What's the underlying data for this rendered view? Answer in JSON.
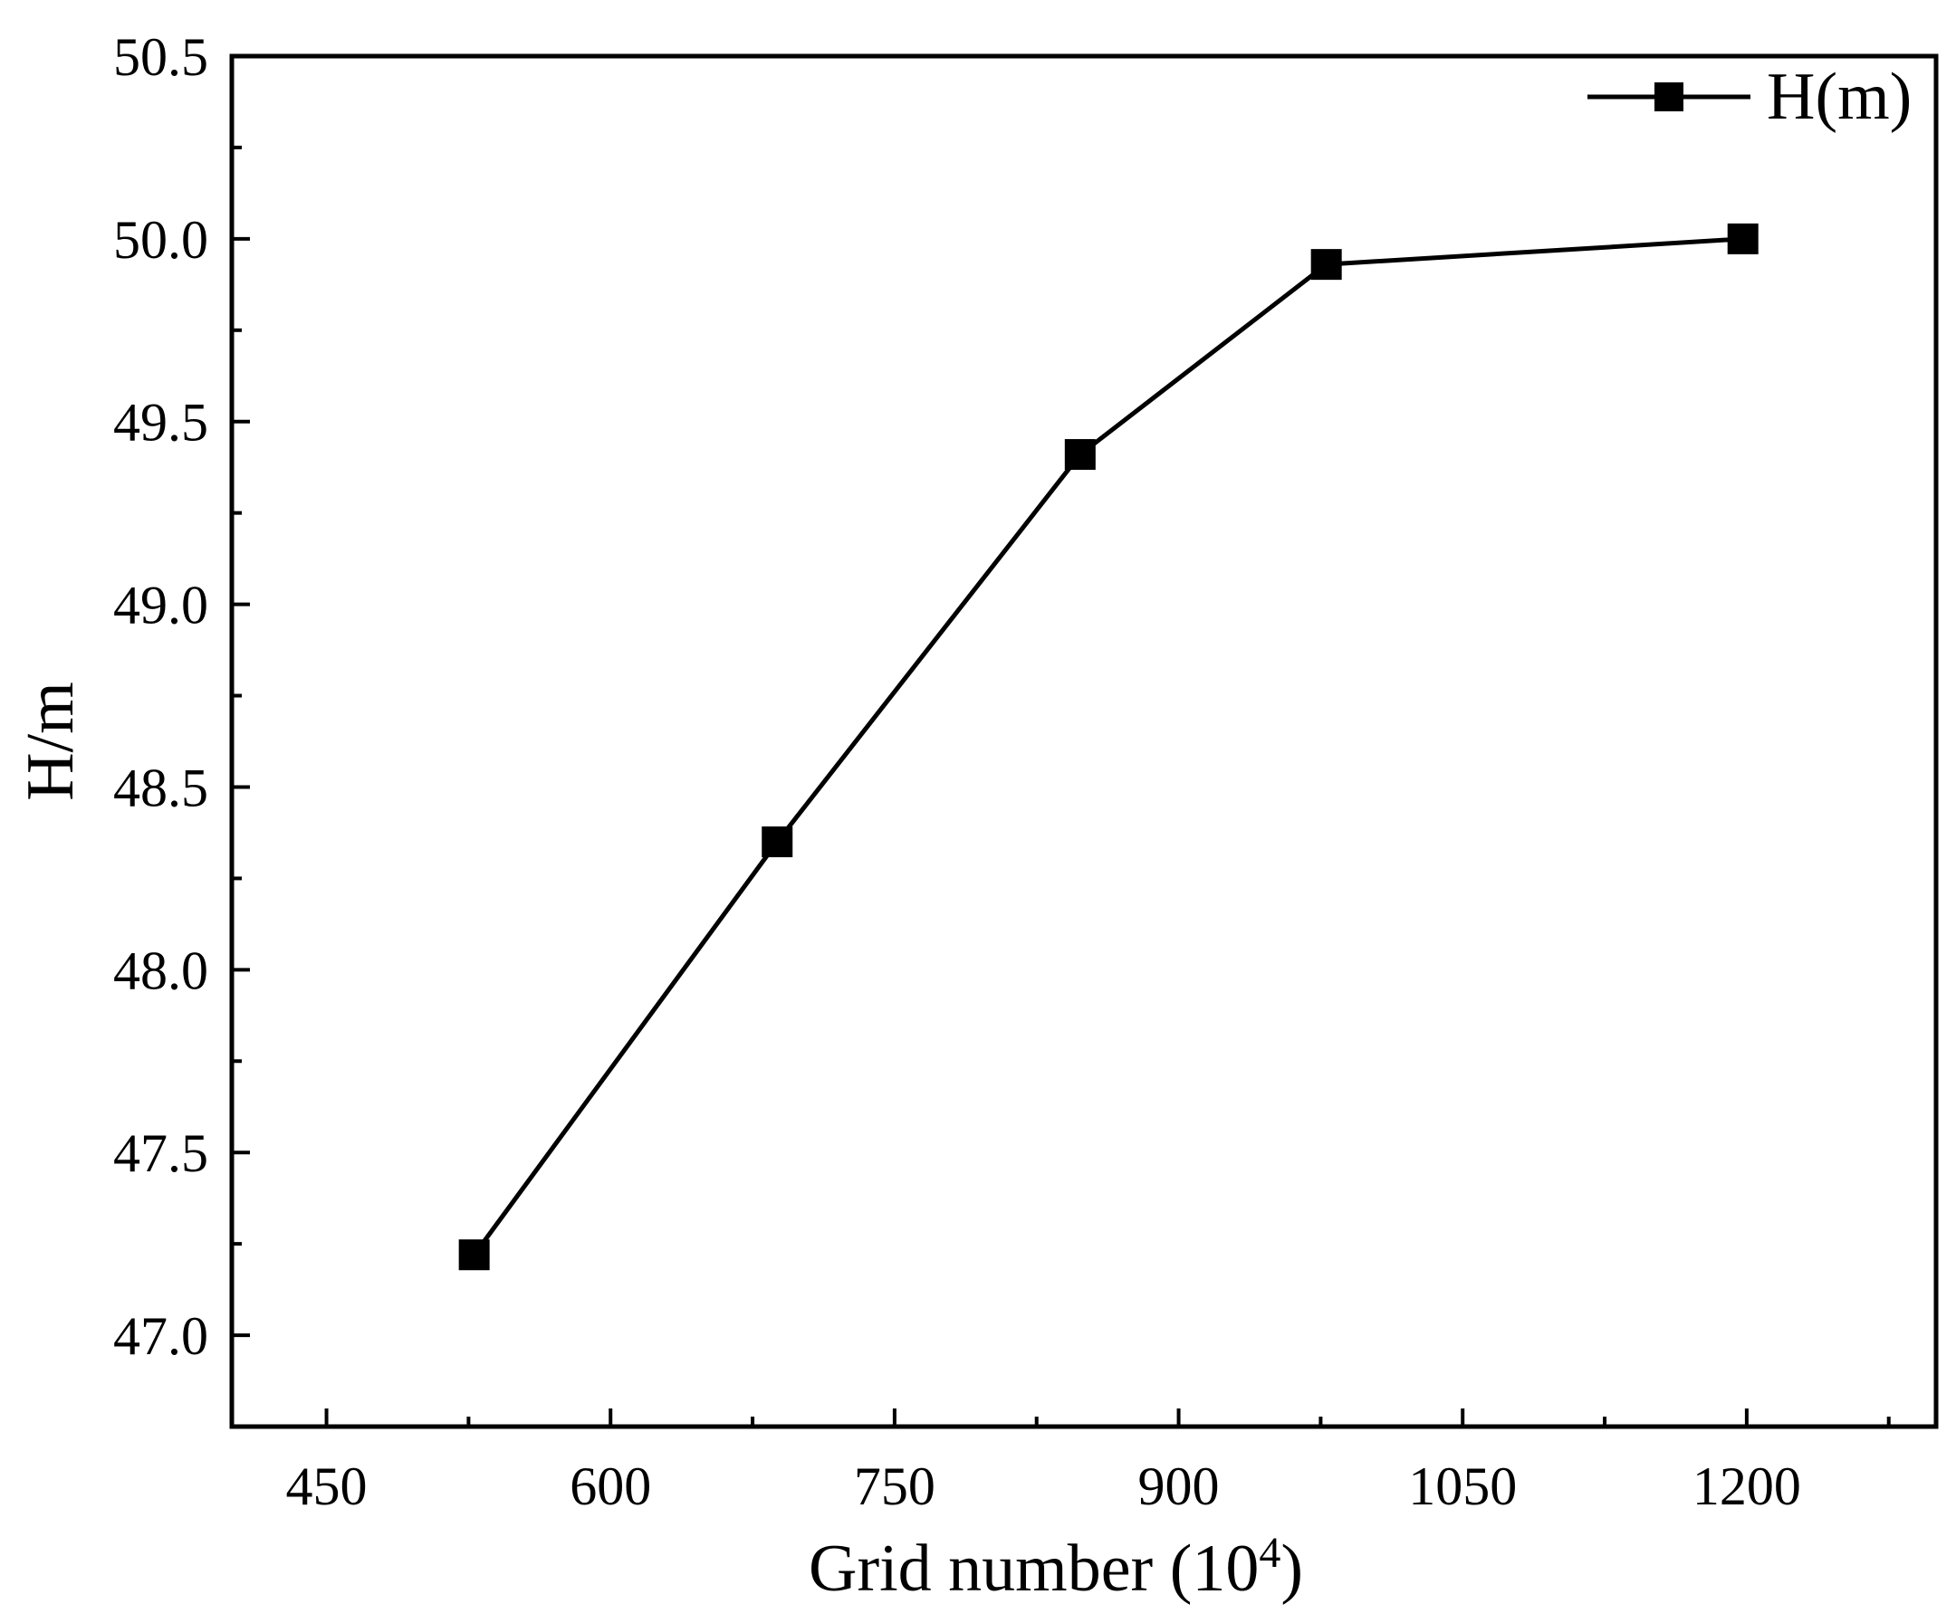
{
  "chart_data": {
    "type": "line",
    "title": "",
    "xlabel": "Grid number (10",
    "xlabel_sup": "4",
    "xlabel_suffix": ")",
    "ylabel": "H/m",
    "xlim": [
      400,
      1300
    ],
    "ylim": [
      46.75,
      50.5
    ],
    "xticks": [
      450,
      600,
      750,
      900,
      1050,
      1200
    ],
    "xtick_labels": [
      "450",
      "600",
      "750",
      "900",
      "1050",
      "1200"
    ],
    "yticks": [
      47.0,
      47.5,
      48.0,
      48.5,
      49.0,
      49.5,
      50.0,
      50.5
    ],
    "ytick_labels": [
      "47.0",
      "47.5",
      "48.0",
      "48.5",
      "49.0",
      "49.5",
      "50.0",
      "50.5"
    ],
    "grid": false,
    "legend_position": "top-right",
    "series": [
      {
        "name": "H(m)",
        "marker": "square",
        "color": "#000000",
        "x": [
          528,
          688,
          848,
          978,
          1198
        ],
        "y": [
          47.22,
          48.35,
          49.41,
          49.93,
          50.0
        ]
      }
    ]
  }
}
